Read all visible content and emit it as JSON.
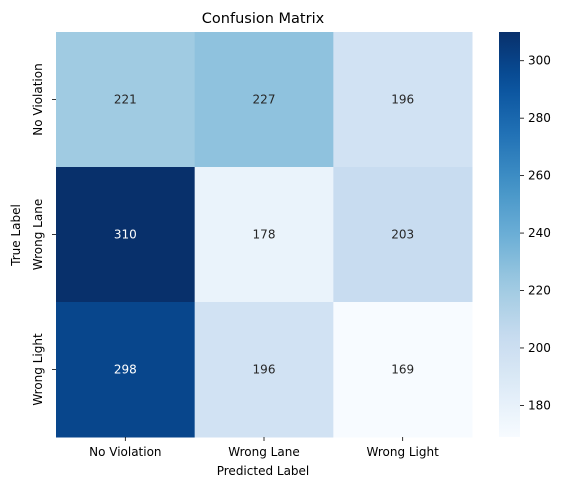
{
  "chart_data": {
    "type": "heatmap",
    "title": "Confusion Matrix",
    "xlabel": "Predicted Label",
    "ylabel": "True Label",
    "x_categories": [
      "No Violation",
      "Wrong Lane",
      "Wrong Light"
    ],
    "y_categories": [
      "No Violation",
      "Wrong Lane",
      "Wrong Light"
    ],
    "values": [
      [
        221,
        227,
        196
      ],
      [
        310,
        178,
        203
      ],
      [
        298,
        196,
        169
      ]
    ],
    "colormap": "Blues",
    "color_range": [
      169,
      310
    ],
    "colorbar_ticks": [
      180,
      200,
      220,
      240,
      260,
      280,
      300
    ],
    "colorbar_low_color": "#f7fbff",
    "colorbar_high_color": "#08306b"
  }
}
